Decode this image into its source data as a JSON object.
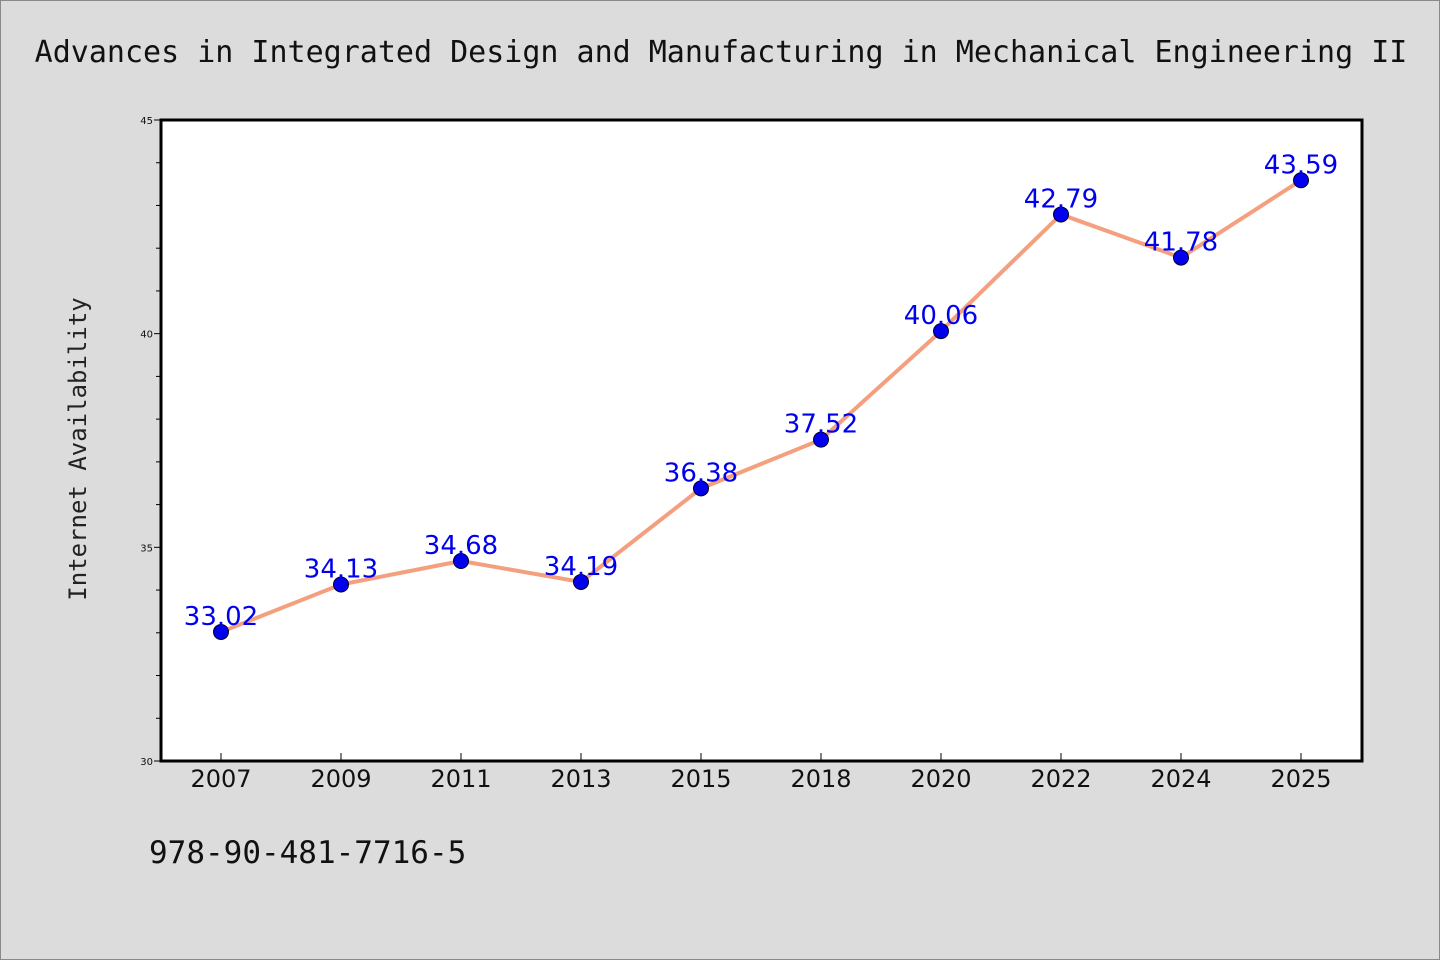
{
  "title": "Advances in Integrated Design and Manufacturing in Mechanical Engineering II",
  "isbn": "978-90-481-7716-5",
  "chart_data": {
    "type": "line",
    "title": "Advances in Integrated Design and Manufacturing in Mechanical Engineering II",
    "xlabel": "",
    "ylabel": "Internet Availability",
    "categories": [
      "2007",
      "2009",
      "2011",
      "2013",
      "2015",
      "2018",
      "2020",
      "2022",
      "2024",
      "2025"
    ],
    "values": [
      33.02,
      34.13,
      34.68,
      34.19,
      36.38,
      37.52,
      40.06,
      42.79,
      41.78,
      43.59
    ],
    "value_labels": [
      "33.02",
      "34.13",
      "34.68",
      "34.19",
      "36.38",
      "37.52",
      "40.06",
      "42.79",
      "41.78",
      "43.59"
    ],
    "ylim": [
      30,
      45
    ],
    "yticks": [
      "30",
      "35",
      "40",
      "45"
    ],
    "grid": false,
    "legend": "none",
    "line_color": "#f4a07e",
    "marker_color": "#0000ee",
    "label_color": "#0000ee",
    "background_color": "#dcdcdc",
    "plot_background_color": "#ffffff"
  }
}
